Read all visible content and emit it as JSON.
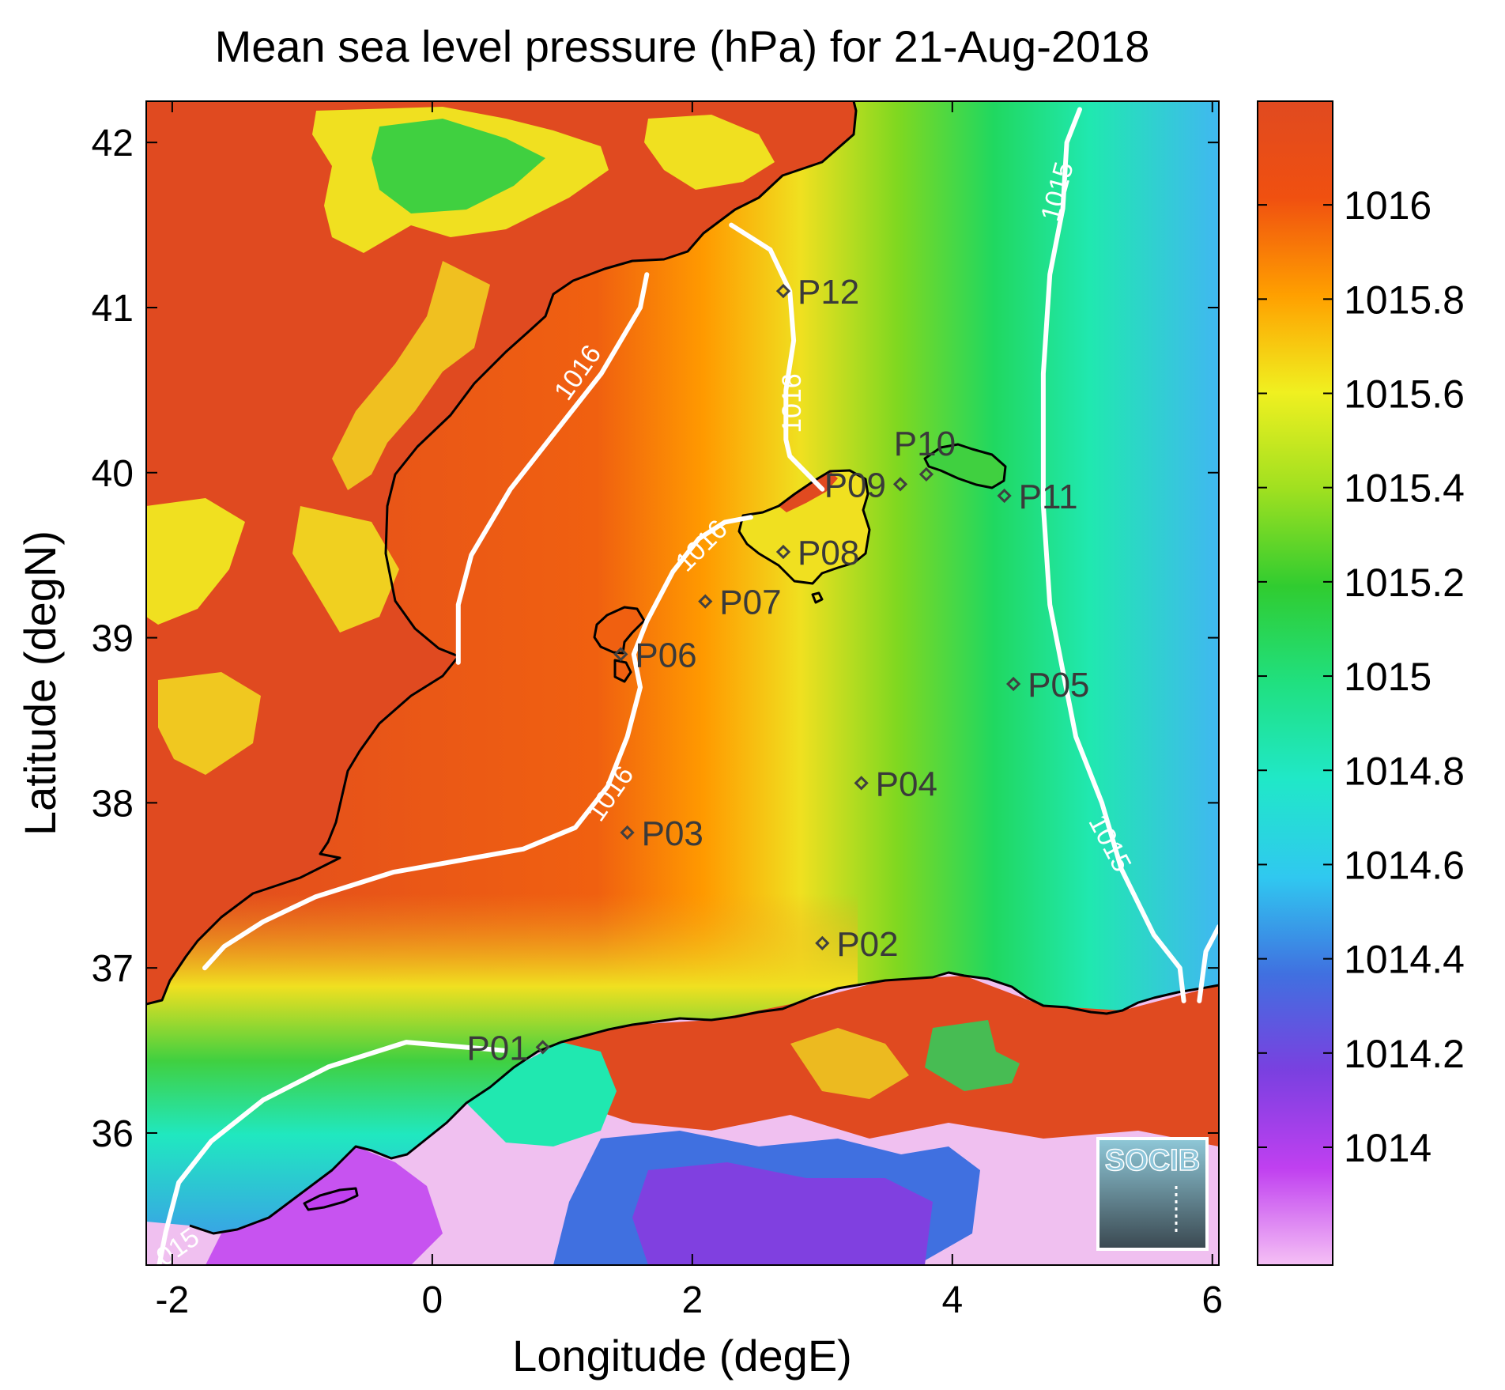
{
  "title": "Mean sea level pressure (hPa) for 21-Aug-2018",
  "xaxis": {
    "label": "Longitude (degE)",
    "range": [
      -2.2,
      6.05
    ],
    "ticks": [
      -2,
      0,
      2,
      4,
      6
    ],
    "tick_labels": [
      "-2",
      "0",
      "2",
      "4",
      "6"
    ]
  },
  "yaxis": {
    "label": "Latitude (degN)",
    "range": [
      35.2,
      42.25
    ],
    "ticks": [
      36,
      37,
      38,
      39,
      40,
      41,
      42
    ],
    "tick_labels": [
      "36",
      "37",
      "38",
      "39",
      "40",
      "41",
      "42"
    ]
  },
  "colorbar": {
    "range": [
      1013.75,
      1016.22
    ],
    "ticks": [
      1014,
      1014.2,
      1014.4,
      1014.6,
      1014.8,
      1015,
      1015.2,
      1015.4,
      1015.6,
      1015.8,
      1016
    ],
    "tick_labels": [
      "1014",
      "1014.2",
      "1014.4",
      "1014.6",
      "1014.8",
      "1015",
      "1015.2",
      "1015.4",
      "1015.6",
      "1015.8",
      "1016"
    ],
    "colors": [
      "#f5c0f5",
      "#c040f0",
      "#7a40e0",
      "#4070e0",
      "#30c8f0",
      "#20e8c8",
      "#20e080",
      "#30cc30",
      "#a0e020",
      "#f0f020",
      "#ffa000",
      "#f05010",
      "#e04a20"
    ]
  },
  "stations": [
    {
      "name": "P01",
      "lon": 0.85,
      "lat": 36.52,
      "label_side": "left"
    },
    {
      "name": "P02",
      "lon": 3.0,
      "lat": 37.15,
      "label_side": "right"
    },
    {
      "name": "P03",
      "lon": 1.5,
      "lat": 37.82,
      "label_side": "right"
    },
    {
      "name": "P04",
      "lon": 3.3,
      "lat": 38.12,
      "label_side": "right"
    },
    {
      "name": "P05",
      "lon": 4.47,
      "lat": 38.72,
      "label_side": "right"
    },
    {
      "name": "P06",
      "lon": 1.45,
      "lat": 38.9,
      "label_side": "right"
    },
    {
      "name": "P07",
      "lon": 2.1,
      "lat": 39.22,
      "label_side": "right"
    },
    {
      "name": "P08",
      "lon": 2.7,
      "lat": 39.52,
      "label_side": "right"
    },
    {
      "name": "P09",
      "lon": 3.6,
      "lat": 39.93,
      "label_side": "left"
    },
    {
      "name": "P10",
      "lon": 3.8,
      "lat": 39.99,
      "label_side": "above"
    },
    {
      "name": "P11",
      "lon": 4.4,
      "lat": 39.86,
      "label_side": "right"
    },
    {
      "name": "P12",
      "lon": 2.7,
      "lat": 41.1,
      "label_side": "right"
    }
  ],
  "contours": [
    {
      "level_label": "1016",
      "points": [
        [
          2.3,
          41.5
        ],
        [
          2.6,
          41.35
        ],
        [
          2.75,
          41.1
        ],
        [
          2.78,
          40.8
        ],
        [
          2.72,
          40.5
        ],
        [
          2.72,
          40.2
        ],
        [
          2.75,
          40.1
        ],
        [
          3.0,
          39.9
        ]
      ]
    },
    {
      "level_label": "1016",
      "points": [
        [
          2.45,
          39.73
        ],
        [
          2.25,
          39.7
        ],
        [
          2.05,
          39.6
        ],
        [
          1.85,
          39.4
        ],
        [
          1.65,
          39.1
        ],
        [
          1.55,
          38.9
        ],
        [
          1.6,
          38.7
        ],
        [
          1.5,
          38.4
        ],
        [
          1.35,
          38.1
        ],
        [
          1.1,
          37.85
        ],
        [
          0.7,
          37.72
        ],
        [
          0.2,
          37.65
        ],
        [
          -0.3,
          37.58
        ],
        [
          -0.9,
          37.43
        ],
        [
          -1.3,
          37.28
        ],
        [
          -1.6,
          37.13
        ],
        [
          -1.75,
          37.0
        ]
      ]
    },
    {
      "level_label": "1016",
      "points": [
        [
          1.65,
          41.2
        ],
        [
          1.6,
          41.0
        ],
        [
          1.3,
          40.6
        ],
        [
          0.9,
          40.2
        ],
        [
          0.6,
          39.9
        ],
        [
          0.3,
          39.5
        ],
        [
          0.2,
          39.2
        ],
        [
          0.2,
          38.85
        ]
      ]
    },
    {
      "level_label": "1015",
      "points": [
        [
          4.98,
          42.2
        ],
        [
          4.88,
          42.0
        ],
        [
          4.85,
          41.6
        ],
        [
          4.75,
          41.2
        ],
        [
          4.7,
          40.6
        ],
        [
          4.7,
          39.8
        ],
        [
          4.75,
          39.2
        ],
        [
          4.85,
          38.8
        ],
        [
          4.95,
          38.4
        ],
        [
          5.15,
          38.0
        ],
        [
          5.3,
          37.6
        ],
        [
          5.55,
          37.2
        ],
        [
          5.75,
          37.0
        ],
        [
          5.78,
          36.8
        ]
      ]
    },
    {
      "level_label": "1015",
      "points": [
        [
          5.9,
          36.8
        ],
        [
          5.95,
          37.1
        ],
        [
          6.05,
          37.25
        ]
      ]
    },
    {
      "level_label": "1015",
      "points": [
        [
          0.55,
          36.5
        ],
        [
          -0.2,
          36.55
        ],
        [
          -0.8,
          36.4
        ],
        [
          -1.3,
          36.2
        ],
        [
          -1.7,
          35.95
        ],
        [
          -1.95,
          35.7
        ],
        [
          -2.05,
          35.4
        ],
        [
          -2.1,
          35.2
        ]
      ]
    }
  ],
  "contour_labels": [
    {
      "text": "1016",
      "lon": 2.78,
      "lat": 40.42,
      "angle": -90
    },
    {
      "text": "1016",
      "lon": 1.13,
      "lat": 40.6,
      "angle": -55
    },
    {
      "text": "1016",
      "lon": 2.08,
      "lat": 39.55,
      "angle": -45
    },
    {
      "text": "1016",
      "lon": 1.38,
      "lat": 38.05,
      "angle": -55
    },
    {
      "text": "1015",
      "lon": 4.82,
      "lat": 41.7,
      "angle": -75
    },
    {
      "text": "1015",
      "lon": 5.2,
      "lat": 37.75,
      "angle": 62
    },
    {
      "text": "015",
      "lon": -1.95,
      "lat": 35.3,
      "angle": -35
    }
  ],
  "logo": {
    "text": "SOCIB"
  }
}
